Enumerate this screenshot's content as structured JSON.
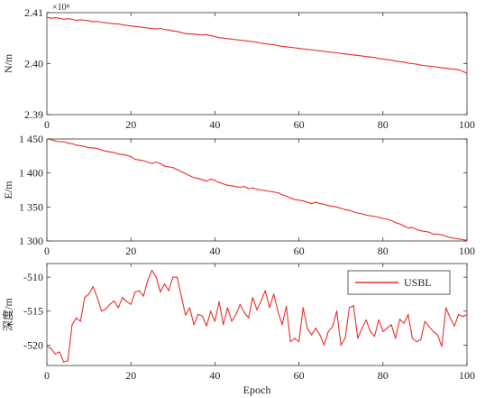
{
  "colors": {
    "series": "#e8312a",
    "axes": "#333333",
    "text": "#222222"
  },
  "chart_data": [
    {
      "type": "line",
      "ylabel": "N/m",
      "xlabel": "",
      "xlim": [
        0,
        100
      ],
      "ylim": [
        2.39,
        2.41
      ],
      "xticks": [
        0,
        20,
        40,
        60,
        80,
        100
      ],
      "yticks": [
        2.39,
        2.4,
        2.41
      ],
      "ytick_labels": [
        "2.39",
        "2.40",
        "2.41"
      ],
      "exponent_label": "×10⁴",
      "grid": false,
      "series": [
        {
          "name": "USBL",
          "x": [
            0,
            1,
            2,
            3,
            4,
            5,
            6,
            7,
            8,
            9,
            10,
            11,
            12,
            13,
            14,
            15,
            16,
            17,
            18,
            19,
            20,
            21,
            22,
            23,
            24,
            25,
            26,
            27,
            28,
            29,
            30,
            31,
            32,
            33,
            34,
            35,
            36,
            37,
            38,
            39,
            40,
            41,
            42,
            43,
            44,
            45,
            46,
            47,
            48,
            49,
            50,
            51,
            52,
            53,
            54,
            55,
            56,
            57,
            58,
            59,
            60,
            61,
            62,
            63,
            64,
            65,
            66,
            67,
            68,
            69,
            70,
            71,
            72,
            73,
            74,
            75,
            76,
            77,
            78,
            79,
            80,
            81,
            82,
            83,
            84,
            85,
            86,
            87,
            88,
            89,
            90,
            91,
            92,
            93,
            94,
            95,
            96,
            97,
            98,
            99,
            100
          ],
          "y": [
            2.4091,
            2.4089,
            2.409,
            2.4089,
            2.4087,
            2.4088,
            2.4087,
            2.4085,
            2.4086,
            2.4085,
            2.4084,
            2.4082,
            2.4083,
            2.4081,
            2.408,
            2.4079,
            2.4078,
            2.4078,
            2.4076,
            2.4075,
            2.4074,
            2.4073,
            2.4072,
            2.4071,
            2.407,
            2.4069,
            2.4068,
            2.4069,
            2.4067,
            2.4066,
            2.4064,
            2.4063,
            2.4061,
            2.4059,
            2.4058,
            2.4058,
            2.4057,
            2.4056,
            2.4057,
            2.4055,
            2.4053,
            2.4051,
            2.405,
            2.4049,
            2.4048,
            2.4047,
            2.4046,
            2.4045,
            2.4044,
            2.4043,
            2.4042,
            2.404,
            2.4039,
            2.4038,
            2.4037,
            2.4035,
            2.4034,
            2.4033,
            2.4032,
            2.4031,
            2.403,
            2.4029,
            2.4028,
            2.4027,
            2.4026,
            2.4025,
            2.4024,
            2.4023,
            2.4022,
            2.4021,
            2.402,
            2.4019,
            2.4018,
            2.4017,
            2.4016,
            2.4015,
            2.4014,
            2.4013,
            2.4012,
            2.401,
            2.4009,
            2.4008,
            2.4007,
            2.4005,
            2.4004,
            2.4003,
            2.4001,
            2.4,
            2.3999,
            2.3997,
            2.3996,
            2.3995,
            2.3994,
            2.3993,
            2.3992,
            2.3991,
            2.399,
            2.3989,
            2.3988,
            2.3985,
            2.3981
          ]
        }
      ]
    },
    {
      "type": "line",
      "ylabel": "E/m",
      "xlabel": "",
      "xlim": [
        0,
        100
      ],
      "ylim": [
        1300,
        1450
      ],
      "xticks": [
        0,
        20,
        40,
        60,
        80,
        100
      ],
      "yticks": [
        1300,
        1350,
        1400,
        1450
      ],
      "ytick_labels": [
        "1 300",
        "1 350",
        "1 400",
        "1 450"
      ],
      "grid": false,
      "series": [
        {
          "name": "USBL",
          "x": [
            0,
            1,
            2,
            3,
            4,
            5,
            6,
            7,
            8,
            9,
            10,
            11,
            12,
            13,
            14,
            15,
            16,
            17,
            18,
            19,
            20,
            21,
            22,
            23,
            24,
            25,
            26,
            27,
            28,
            29,
            30,
            31,
            32,
            33,
            34,
            35,
            36,
            37,
            38,
            39,
            40,
            41,
            42,
            43,
            44,
            45,
            46,
            47,
            48,
            49,
            50,
            51,
            52,
            53,
            54,
            55,
            56,
            57,
            58,
            59,
            60,
            61,
            62,
            63,
            64,
            65,
            66,
            67,
            68,
            69,
            70,
            71,
            72,
            73,
            74,
            75,
            76,
            77,
            78,
            79,
            80,
            81,
            82,
            83,
            84,
            85,
            86,
            87,
            88,
            89,
            90,
            91,
            92,
            93,
            94,
            95,
            96,
            97,
            98,
            99,
            100
          ],
          "y": [
            1450,
            1449,
            1447,
            1446,
            1446,
            1444,
            1443,
            1441,
            1440,
            1439,
            1437,
            1437,
            1436,
            1434,
            1432,
            1431,
            1430,
            1428,
            1427,
            1426,
            1424,
            1420,
            1419,
            1418,
            1416,
            1414,
            1416,
            1414,
            1410,
            1409,
            1408,
            1405,
            1402,
            1399,
            1396,
            1393,
            1392,
            1390,
            1388,
            1391,
            1389,
            1386,
            1384,
            1382,
            1381,
            1380,
            1379,
            1380,
            1377,
            1378,
            1376,
            1375,
            1374,
            1373,
            1372,
            1371,
            1368,
            1366,
            1363,
            1361,
            1360,
            1359,
            1357,
            1355,
            1357,
            1355,
            1354,
            1352,
            1351,
            1350,
            1348,
            1346,
            1345,
            1343,
            1341,
            1340,
            1338,
            1337,
            1336,
            1335,
            1333,
            1332,
            1330,
            1327,
            1325,
            1322,
            1319,
            1320,
            1317,
            1315,
            1314,
            1313,
            1310,
            1310,
            1309,
            1307,
            1305,
            1304,
            1303,
            1302,
            1301
          ]
        }
      ]
    },
    {
      "type": "line",
      "ylabel": "深度/m",
      "xlabel": "Epoch",
      "xlim": [
        0,
        100
      ],
      "ylim": [
        -523,
        -508
      ],
      "xticks": [
        0,
        20,
        40,
        60,
        80,
        100
      ],
      "yticks": [
        -520,
        -515,
        -510
      ],
      "ytick_labels": [
        "-520",
        "-515",
        "-510"
      ],
      "grid": false,
      "legend": {
        "entries": [
          "USBL"
        ],
        "placement": "top-right"
      },
      "series": [
        {
          "name": "USBL",
          "x": [
            0,
            1,
            2,
            3,
            4,
            5,
            6,
            7,
            8,
            9,
            10,
            11,
            12,
            13,
            14,
            15,
            16,
            17,
            18,
            19,
            20,
            21,
            22,
            23,
            24,
            25,
            26,
            27,
            28,
            29,
            30,
            31,
            32,
            33,
            34,
            35,
            36,
            37,
            38,
            39,
            40,
            41,
            42,
            43,
            44,
            45,
            46,
            47,
            48,
            49,
            50,
            51,
            52,
            53,
            54,
            55,
            56,
            57,
            58,
            59,
            60,
            61,
            62,
            63,
            64,
            65,
            66,
            67,
            68,
            69,
            70,
            71,
            72,
            73,
            74,
            75,
            76,
            77,
            78,
            79,
            80,
            81,
            82,
            83,
            84,
            85,
            86,
            87,
            88,
            89,
            90,
            91,
            92,
            93,
            94,
            95,
            96,
            97,
            98,
            99,
            100
          ],
          "y": [
            -520.2,
            -520.5,
            -521.3,
            -521.0,
            -522.5,
            -522.3,
            -517.0,
            -516.0,
            -516.5,
            -513.0,
            -512.5,
            -511.4,
            -513.0,
            -515.0,
            -514.7,
            -514.0,
            -513.5,
            -514.5,
            -513.0,
            -513.6,
            -514.0,
            -512.2,
            -512.0,
            -512.8,
            -510.5,
            -509.0,
            -510.0,
            -512.2,
            -511.0,
            -512.0,
            -510.0,
            -510.0,
            -512.8,
            -515.6,
            -514.5,
            -517.0,
            -515.5,
            -515.7,
            -517.2,
            -515.0,
            -516.5,
            -513.6,
            -517.0,
            -514.5,
            -516.5,
            -515.5,
            -514.0,
            -515.2,
            -516.0,
            -513.0,
            -514.8,
            -513.5,
            -512.0,
            -514.5,
            -512.5,
            -515.0,
            -517.0,
            -514.3,
            -519.5,
            -519.0,
            -519.5,
            -514.5,
            -517.5,
            -518.5,
            -517.5,
            -518.5,
            -520.0,
            -518.0,
            -517.3,
            -515.0,
            -520.0,
            -519.0,
            -514.5,
            -514.2,
            -519.0,
            -517.5,
            -516.3,
            -518.0,
            -518.7,
            -516.3,
            -518.0,
            -517.5,
            -517.0,
            -519.0,
            -516.2,
            -516.8,
            -515.5,
            -519.0,
            -519.5,
            -519.2,
            -516.5,
            -517.3,
            -518.0,
            -518.5,
            -520.2,
            -514.5,
            -516.0,
            -517.2,
            -515.5,
            -515.8,
            -515.5
          ]
        }
      ]
    }
  ]
}
